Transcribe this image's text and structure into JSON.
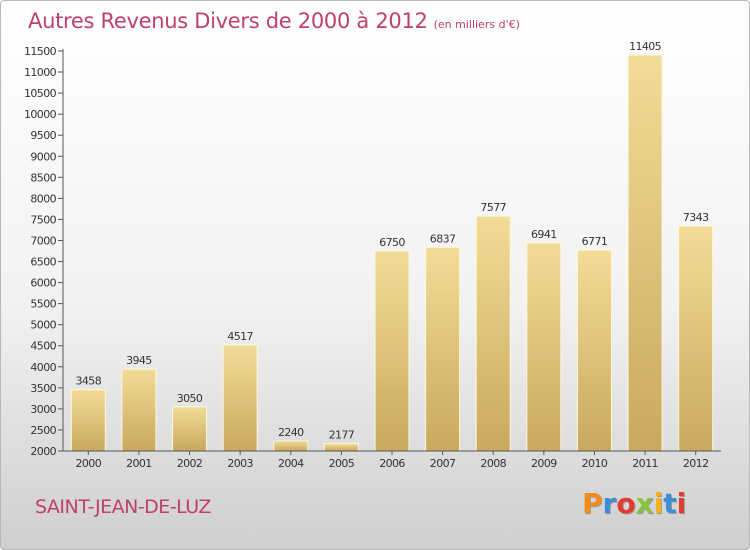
{
  "chart_data": {
    "type": "bar",
    "title": "Autres Revenus Divers de 2000 à 2012",
    "subtitle": "(en milliers d'€)",
    "categories": [
      "2000",
      "2001",
      "2002",
      "2003",
      "2004",
      "2005",
      "2006",
      "2007",
      "2008",
      "2009",
      "2010",
      "2011",
      "2012"
    ],
    "values": [
      3458,
      3945,
      3050,
      4517,
      2240,
      2177,
      6750,
      6837,
      7577,
      6941,
      6771,
      11405,
      7343
    ],
    "ylim": [
      2000,
      11500
    ],
    "yticks": [
      "2000",
      "2500",
      "3000",
      "3500",
      "4000",
      "4500",
      "5000",
      "5500",
      "6000",
      "6500",
      "7000",
      "7500",
      "8000",
      "8500",
      "9000",
      "9500",
      "10000",
      "10500",
      "11000",
      "11500"
    ],
    "grid": false,
    "bar_color": "#e8cd85"
  },
  "footer": {
    "city": "SAINT-JEAN-DE-LUZ",
    "logo": [
      "P",
      "r",
      "o",
      "x",
      "i",
      "t",
      "i"
    ],
    "logo_colors": [
      "#f28c1e",
      "#3a8fd6",
      "#e03c31",
      "#8ac43f",
      "#f2b21e",
      "#3a8fd6",
      "#e03c31"
    ]
  }
}
